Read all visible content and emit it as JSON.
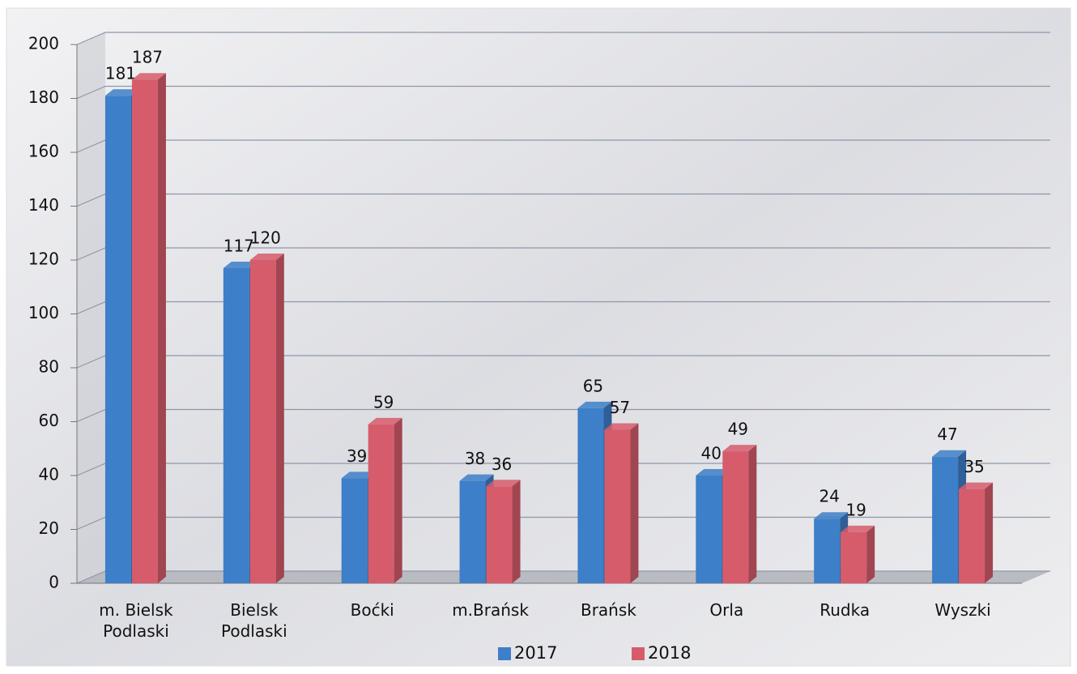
{
  "chart_data": {
    "type": "bar",
    "categories": [
      "m. Bielsk Podlaski",
      "Bielsk Podlaski",
      "Boćki",
      "m.Brańsk",
      "Brańsk",
      "Orla",
      "Rudka",
      "Wyszki"
    ],
    "series": [
      {
        "name": "2017",
        "color": "#3d7fc8",
        "values": [
          181,
          117,
          39,
          38,
          65,
          40,
          24,
          47
        ]
      },
      {
        "name": "2018",
        "color": "#d65c6c",
        "values": [
          187,
          120,
          59,
          36,
          57,
          49,
          19,
          35
        ]
      }
    ],
    "ylim": [
      0,
      200
    ],
    "yticks": [
      0,
      20,
      40,
      60,
      80,
      100,
      120,
      140,
      160,
      180,
      200
    ],
    "grid": true,
    "legend": "bottom"
  }
}
